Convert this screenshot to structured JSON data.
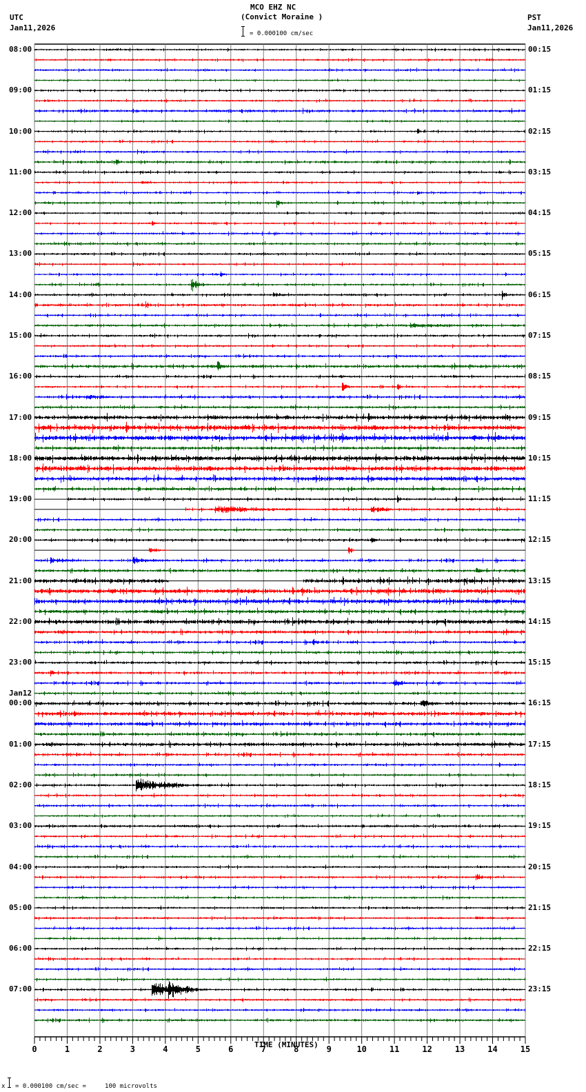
{
  "header": {
    "station": "MCO EHZ NC",
    "location": "(Convict Moraine )",
    "scale_text": "= 0.000100 cm/sec",
    "left_tz": "UTC",
    "left_date": "Jan11,2026",
    "right_tz": "PST",
    "right_date": "Jan11,2026"
  },
  "footer": {
    "scale_text": "= 0.000100 cm/sec =     100 microvolts",
    "scale_prefix": "x"
  },
  "colors": {
    "trace_cycle": [
      "#000000",
      "#ff0000",
      "#0000ff",
      "#006400"
    ],
    "grid": "#808080",
    "baseline": "#000000"
  },
  "chart_data": {
    "type": "line",
    "title": "MCO EHZ NC (Convict Moraine ) helicorder",
    "xlabel": "TIME (MINUTES)",
    "ylabel": "",
    "x_ticks": [
      "0",
      "1",
      "2",
      "3",
      "4",
      "5",
      "6",
      "7",
      "8",
      "9",
      "10",
      "11",
      "12",
      "13",
      "14",
      "15"
    ],
    "xlim": [
      0,
      15
    ],
    "minor_tick_seconds": 10,
    "traces_per_hour": 4,
    "trace_minutes": 15,
    "total_traces": 96,
    "scale": "0.000100 cm/sec = 100 microvolts",
    "utc_labels": [
      "08:00",
      "09:00",
      "10:00",
      "11:00",
      "12:00",
      "13:00",
      "14:00",
      "15:00",
      "16:00",
      "17:00",
      "18:00",
      "19:00",
      "20:00",
      "21:00",
      "22:00",
      "23:00",
      "00:00",
      "01:00",
      "02:00",
      "03:00",
      "04:00",
      "05:00",
      "06:00",
      "07:00"
    ],
    "utc_date_change": {
      "index": 16,
      "label": "Jan12"
    },
    "pst_labels": [
      "00:15",
      "01:15",
      "02:15",
      "03:15",
      "04:15",
      "05:15",
      "06:15",
      "07:15",
      "08:15",
      "09:15",
      "10:15",
      "11:15",
      "12:15",
      "13:15",
      "14:15",
      "15:15",
      "16:15",
      "17:15",
      "18:15",
      "19:15",
      "20:15",
      "21:15",
      "22:15",
      "23:15"
    ],
    "background_noise": [
      1.2,
      1.2,
      1.3,
      1.1,
      1.2,
      1.3,
      1.6,
      1.1,
      1.2,
      1.2,
      1.3,
      1.6,
      1.3,
      1.2,
      1.3,
      1.3,
      1.2,
      1.3,
      1.4,
      1.4,
      1.3,
      1.2,
      1.2,
      1.3,
      1.4,
      1.6,
      1.3,
      1.6,
      1.4,
      1.3,
      1.4,
      2.0,
      1.3,
      1.3,
      1.6,
      1.6,
      2.5,
      3.0,
      3.2,
      2.0,
      3.0,
      3.0,
      2.6,
      2.0,
      1.5,
      1.5,
      1.4,
      1.5,
      1.5,
      0.0,
      1.5,
      1.8,
      2.6,
      3.0,
      2.8,
      2.2,
      2.6,
      2.0,
      1.6,
      1.6,
      1.6,
      1.6,
      1.6,
      1.5,
      2.0,
      2.4,
      2.2,
      1.8,
      2.2,
      1.6,
      1.4,
      1.4,
      1.4,
      1.4,
      1.4,
      1.3,
      1.5,
      1.4,
      1.4,
      1.3,
      1.3,
      1.3,
      1.3,
      1.3,
      1.3,
      1.3,
      1.3,
      1.3,
      1.3,
      1.3,
      1.3,
      1.3,
      1.3,
      1.3,
      1.3,
      1.5
    ],
    "events": [
      {
        "trace": 0,
        "minute": 6.3,
        "amp": 2,
        "dur": 0.3
      },
      {
        "trace": 1,
        "minute": 13.9,
        "amp": 2.5,
        "dur": 0.4
      },
      {
        "trace": 4,
        "minute": 6.2,
        "amp": 2,
        "dur": 0.3
      },
      {
        "trace": 6,
        "minute": 6.5,
        "amp": 3,
        "dur": 0.6
      },
      {
        "trace": 8,
        "minute": 11.7,
        "amp": 5,
        "dur": 0.2
      },
      {
        "trace": 10,
        "minute": 1.2,
        "amp": 2,
        "dur": 0.5
      },
      {
        "trace": 11,
        "minute": 2.5,
        "amp": 6,
        "dur": 0.2
      },
      {
        "trace": 12,
        "minute": 14.2,
        "amp": 4,
        "dur": 0.2
      },
      {
        "trace": 13,
        "minute": 3.3,
        "amp": 2.5,
        "dur": 0.8
      },
      {
        "trace": 14,
        "minute": 11.7,
        "amp": 4,
        "dur": 0.2
      },
      {
        "trace": 15,
        "minute": 7.4,
        "amp": 7,
        "dur": 0.3
      },
      {
        "trace": 17,
        "minute": 3.6,
        "amp": 4,
        "dur": 0.15
      },
      {
        "trace": 22,
        "minute": 5.7,
        "amp": 5,
        "dur": 0.2
      },
      {
        "trace": 23,
        "minute": 1.8,
        "amp": 3,
        "dur": 0.8
      },
      {
        "trace": 23,
        "minute": 4.8,
        "amp": 10,
        "dur": 0.4
      },
      {
        "trace": 24,
        "minute": 7.3,
        "amp": 3.5,
        "dur": 1.0
      },
      {
        "trace": 24,
        "minute": 14.3,
        "amp": 6,
        "dur": 0.3
      },
      {
        "trace": 24,
        "minute": 4.2,
        "amp": 3.5,
        "dur": 0.1
      },
      {
        "trace": 25,
        "minute": 3.4,
        "amp": 6,
        "dur": 0.3
      },
      {
        "trace": 26,
        "minute": 1.7,
        "amp": 4,
        "dur": 0.1
      },
      {
        "trace": 27,
        "minute": 11.5,
        "amp": 3.5,
        "dur": 3.5
      },
      {
        "trace": 28,
        "minute": 8.7,
        "amp": 4,
        "dur": 0.1
      },
      {
        "trace": 31,
        "minute": 5.6,
        "amp": 8,
        "dur": 0.3
      },
      {
        "trace": 32,
        "minute": 9.3,
        "amp": 3,
        "dur": 0.5
      },
      {
        "trace": 32,
        "minute": 12.8,
        "amp": 3,
        "dur": 0.5
      },
      {
        "trace": 33,
        "minute": 9.4,
        "amp": 6,
        "dur": 0.4
      },
      {
        "trace": 33,
        "minute": 11.1,
        "amp": 4,
        "dur": 0.3
      },
      {
        "trace": 34,
        "minute": 1.6,
        "amp": 4,
        "dur": 1.5
      },
      {
        "trace": 36,
        "minute": 5.5,
        "amp": 4,
        "dur": 0.2
      },
      {
        "trace": 36,
        "minute": 10.2,
        "amp": 6,
        "dur": 0.3
      },
      {
        "trace": 36,
        "minute": 11.8,
        "amp": 6,
        "dur": 0.3
      },
      {
        "trace": 36,
        "minute": 14.4,
        "amp": 6,
        "dur": 0.2
      },
      {
        "trace": 37,
        "minute": 0.4,
        "amp": 6,
        "dur": 0.2
      },
      {
        "trace": 37,
        "minute": 2.8,
        "amp": 7,
        "dur": 0.2
      },
      {
        "trace": 38,
        "minute": 5.5,
        "amp": 4,
        "dur": 0.3
      },
      {
        "trace": 38,
        "minute": 9.0,
        "amp": 5,
        "dur": 0.3
      },
      {
        "trace": 44,
        "minute": 5.1,
        "amp": 4,
        "dur": 0.2
      },
      {
        "trace": 44,
        "minute": 11.1,
        "amp": 7,
        "dur": 0.2
      },
      {
        "trace": 45,
        "minute": 5.5,
        "amp": 5,
        "dur": 4.2
      },
      {
        "trace": 45,
        "minute": 10.3,
        "amp": 5,
        "dur": 1.3
      },
      {
        "trace": 48,
        "minute": 10.3,
        "amp": 6,
        "dur": 0.2
      },
      {
        "trace": 49,
        "minute": 3.5,
        "amp": 5,
        "dur": 0.6
      },
      {
        "trace": 49,
        "minute": 9.6,
        "amp": 8,
        "dur": 0.2
      },
      {
        "trace": 50,
        "minute": 0.5,
        "amp": 5,
        "dur": 1.2
      },
      {
        "trace": 50,
        "minute": 3.0,
        "amp": 5,
        "dur": 1.5
      },
      {
        "trace": 51,
        "minute": 13.5,
        "amp": 5,
        "dur": 0.3
      },
      {
        "trace": 56,
        "minute": 6.2,
        "amp": 4,
        "dur": 0.4
      },
      {
        "trace": 58,
        "minute": 8.5,
        "amp": 6,
        "dur": 0.3
      },
      {
        "trace": 61,
        "minute": 0.5,
        "amp": 6,
        "dur": 0.2
      },
      {
        "trace": 62,
        "minute": 11.0,
        "amp": 5,
        "dur": 0.8
      },
      {
        "trace": 64,
        "minute": 11.8,
        "amp": 5,
        "dur": 1.2
      },
      {
        "trace": 65,
        "minute": 1.2,
        "amp": 5,
        "dur": 0.3
      },
      {
        "trace": 72,
        "minute": 3.1,
        "amp": 10,
        "dur": 2.5
      },
      {
        "trace": 81,
        "minute": 13.5,
        "amp": 5,
        "dur": 0.6
      },
      {
        "trace": 85,
        "minute": 13.5,
        "amp": 3,
        "dur": 0.6
      },
      {
        "trace": 87,
        "minute": 3.8,
        "amp": 4,
        "dur": 0.1
      },
      {
        "trace": 92,
        "minute": 3.6,
        "amp": 11,
        "dur": 1.5
      },
      {
        "trace": 92,
        "minute": 4.1,
        "amp": 14,
        "dur": 1.2
      },
      {
        "trace": 92,
        "minute": 10.3,
        "amp": 3,
        "dur": 0.1
      }
    ],
    "flat_segments": [
      {
        "trace": 44,
        "from": 0,
        "to": 1.0
      },
      {
        "trace": 45,
        "from": 0,
        "to": 4.6
      },
      {
        "trace": 52,
        "from": 4.1,
        "to": 8.2
      }
    ]
  }
}
